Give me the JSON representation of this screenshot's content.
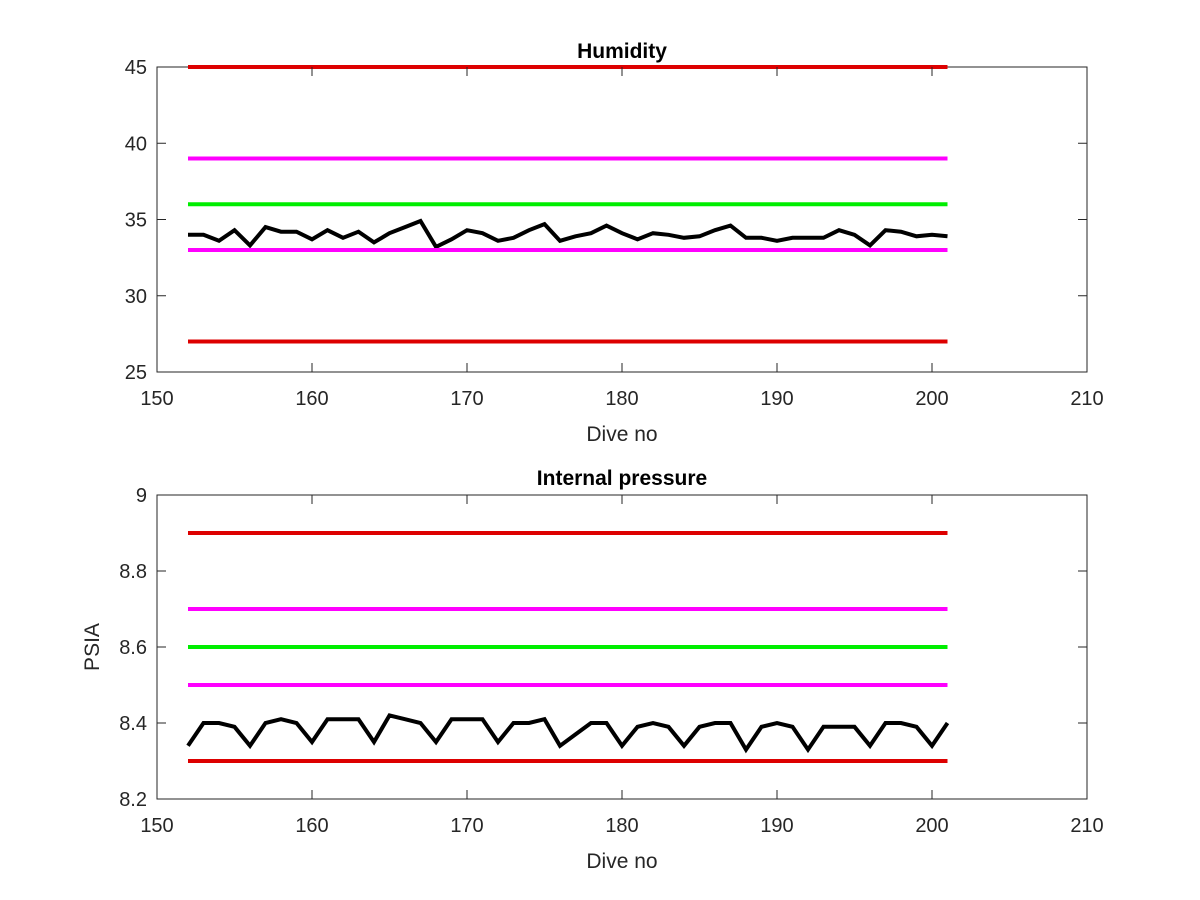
{
  "chart_data": [
    {
      "type": "line",
      "title": "Humidity",
      "xlabel": "Dive no",
      "ylabel": "",
      "xlim": [
        150,
        210
      ],
      "ylim": [
        25,
        45
      ],
      "xticks": [
        "150",
        "160",
        "170",
        "180",
        "190",
        "200",
        "210"
      ],
      "yticks": [
        "25",
        "30",
        "35",
        "40",
        "45"
      ],
      "grid": false,
      "series": [
        {
          "color": "#000000",
          "x": [
            152,
            153,
            154,
            155,
            156,
            157,
            158,
            159,
            160,
            161,
            162,
            163,
            164,
            165,
            166,
            167,
            168,
            169,
            170,
            171,
            172,
            173,
            174,
            175,
            176,
            177,
            178,
            179,
            180,
            181,
            182,
            183,
            184,
            185,
            186,
            187,
            188,
            189,
            190,
            191,
            192,
            193,
            194,
            195,
            196,
            197,
            198,
            199,
            200,
            201
          ],
          "y": [
            34.0,
            34.0,
            33.6,
            34.3,
            33.3,
            34.5,
            34.2,
            34.2,
            33.7,
            34.3,
            33.8,
            34.2,
            33.5,
            34.1,
            34.5,
            34.9,
            33.2,
            33.7,
            34.3,
            34.1,
            33.6,
            33.8,
            34.3,
            34.7,
            33.6,
            33.9,
            34.1,
            34.6,
            34.1,
            33.7,
            34.1,
            34.0,
            33.8,
            33.9,
            34.3,
            34.6,
            33.8,
            33.8,
            33.6,
            33.8,
            33.8,
            33.8,
            34.3,
            34.0,
            33.3,
            34.3,
            34.2,
            33.9,
            34.0,
            33.9
          ]
        },
        {
          "color": "#dd0000",
          "x": [
            152,
            201
          ],
          "y": [
            45,
            45
          ]
        },
        {
          "color": "#ff00ff",
          "x": [
            152,
            201
          ],
          "y": [
            39,
            39
          ]
        },
        {
          "color": "#00ee00",
          "x": [
            152,
            201
          ],
          "y": [
            36,
            36
          ]
        },
        {
          "color": "#ff00ff",
          "x": [
            152,
            201
          ],
          "y": [
            33,
            33
          ]
        },
        {
          "color": "#dd0000",
          "x": [
            152,
            201
          ],
          "y": [
            27,
            27
          ]
        }
      ]
    },
    {
      "type": "line",
      "title": "Internal pressure",
      "xlabel": "Dive no",
      "ylabel": "PSIA",
      "xlim": [
        150,
        210
      ],
      "ylim": [
        8.2,
        9
      ],
      "xticks": [
        "150",
        "160",
        "170",
        "180",
        "190",
        "200",
        "210"
      ],
      "yticks": [
        "8.2",
        "8.4",
        "8.6",
        "8.8",
        "9"
      ],
      "grid": false,
      "series": [
        {
          "color": "#000000",
          "x": [
            152,
            153,
            154,
            155,
            156,
            157,
            158,
            159,
            160,
            161,
            162,
            163,
            164,
            165,
            166,
            167,
            168,
            169,
            170,
            171,
            172,
            173,
            174,
            175,
            176,
            177,
            178,
            179,
            180,
            181,
            182,
            183,
            184,
            185,
            186,
            187,
            188,
            189,
            190,
            191,
            192,
            193,
            194,
            195,
            196,
            197,
            198,
            199,
            200,
            201
          ],
          "y": [
            8.34,
            8.4,
            8.4,
            8.39,
            8.34,
            8.4,
            8.41,
            8.4,
            8.35,
            8.41,
            8.41,
            8.41,
            8.35,
            8.42,
            8.41,
            8.4,
            8.35,
            8.41,
            8.41,
            8.41,
            8.35,
            8.4,
            8.4,
            8.41,
            8.34,
            8.37,
            8.4,
            8.4,
            8.34,
            8.39,
            8.4,
            8.39,
            8.34,
            8.39,
            8.4,
            8.4,
            8.33,
            8.39,
            8.4,
            8.39,
            8.33,
            8.39,
            8.39,
            8.39,
            8.34,
            8.4,
            8.4,
            8.39,
            8.34,
            8.4
          ]
        },
        {
          "color": "#dd0000",
          "x": [
            152,
            201
          ],
          "y": [
            8.9,
            8.9
          ]
        },
        {
          "color": "#ff00ff",
          "x": [
            152,
            201
          ],
          "y": [
            8.7,
            8.7
          ]
        },
        {
          "color": "#00ee00",
          "x": [
            152,
            201
          ],
          "y": [
            8.6,
            8.6
          ]
        },
        {
          "color": "#ff00ff",
          "x": [
            152,
            201
          ],
          "y": [
            8.5,
            8.5
          ]
        },
        {
          "color": "#dd0000",
          "x": [
            152,
            201
          ],
          "y": [
            8.3,
            8.3
          ]
        }
      ]
    }
  ]
}
